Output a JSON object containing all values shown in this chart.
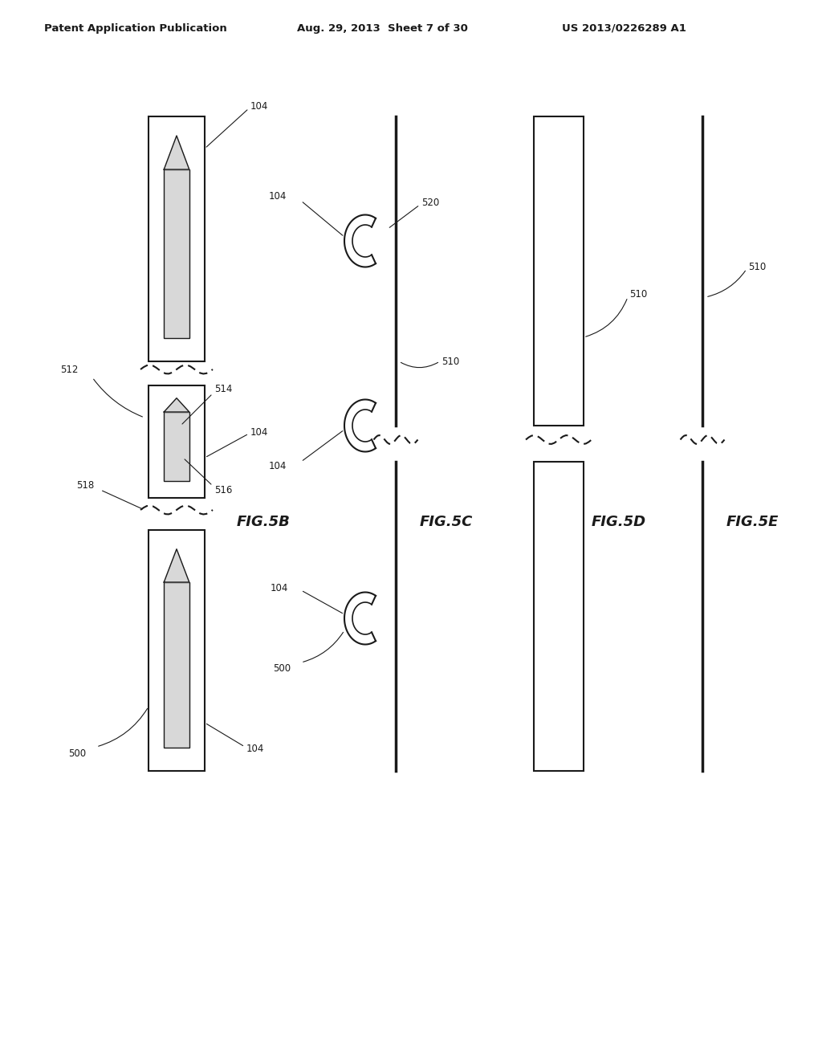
{
  "bg_color": "#ffffff",
  "header_left": "Patent Application Publication",
  "header_mid": "Aug. 29, 2013  Sheet 7 of 30",
  "header_right": "US 2013/0226289 A1",
  "fig_labels": [
    "FIG.5B",
    "FIG.5C",
    "FIG.5D",
    "FIG.5E"
  ],
  "ref_numbers": [
    "104",
    "514",
    "516",
    "512",
    "518",
    "500",
    "520",
    "510",
    "104",
    "104",
    "104",
    "104",
    "500",
    "510"
  ],
  "line_color": "#1a1a1a",
  "fill_color": "#f0f0f0"
}
